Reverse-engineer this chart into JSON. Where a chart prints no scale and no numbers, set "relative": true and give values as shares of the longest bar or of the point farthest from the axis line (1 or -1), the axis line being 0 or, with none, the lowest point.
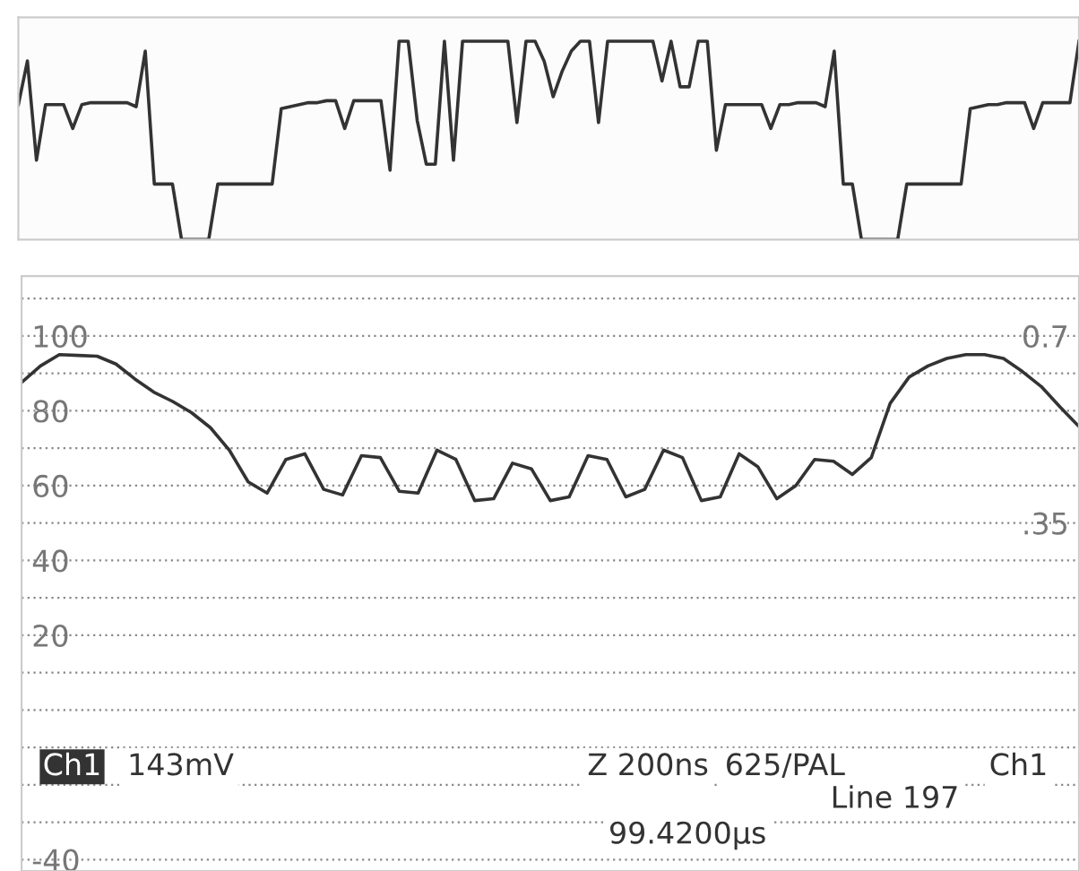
{
  "chart_data": [
    {
      "type": "line",
      "relative": true,
      "tick_labels": false,
      "color": "#333333",
      "categories": [
        null,
        null,
        null,
        null,
        null,
        null,
        null,
        null,
        null,
        null,
        null,
        null,
        null,
        null,
        null,
        null,
        null,
        null,
        null,
        null,
        null,
        null,
        null,
        null,
        null,
        null,
        null,
        null,
        null,
        null,
        null,
        null,
        null,
        null,
        null,
        null,
        null,
        null,
        null,
        null,
        null,
        null,
        null,
        null,
        null,
        null,
        null,
        null,
        null,
        null,
        null,
        null,
        null,
        null,
        null,
        null,
        null,
        null,
        null,
        null,
        null,
        null,
        null,
        null,
        null,
        null,
        null,
        null,
        null,
        null,
        null,
        null,
        null,
        null,
        null,
        null,
        null,
        null,
        null,
        null,
        null,
        null,
        null,
        null,
        null,
        null,
        null,
        null,
        null,
        null,
        null,
        null,
        null,
        null,
        null,
        null,
        null,
        null,
        null,
        null,
        null,
        null,
        null,
        null,
        null,
        null,
        null,
        null,
        null,
        null,
        null,
        null,
        null,
        null,
        null,
        null,
        null,
        null
      ],
      "values": [
        0.68,
        0.9,
        0.4,
        0.68,
        0.68,
        0.68,
        0.56,
        0.68,
        0.69,
        0.69,
        0.69,
        0.69,
        0.69,
        0.67,
        0.95,
        0.28,
        0.28,
        0.28,
        0,
        0,
        0,
        0,
        0.28,
        0.28,
        0.28,
        0.28,
        0.28,
        0.28,
        0.28,
        0.66,
        0.67,
        0.68,
        0.69,
        0.69,
        0.7,
        0.7,
        0.56,
        0.7,
        0.7,
        0.7,
        0.7,
        0.35,
        1,
        1,
        0.6,
        0.38,
        0.38,
        1,
        0.4,
        1,
        1,
        1,
        1,
        1,
        1,
        0.59,
        1,
        1,
        0.9,
        0.72,
        0.85,
        0.95,
        1,
        1,
        0.59,
        1,
        1,
        1,
        1,
        1,
        1,
        0.8,
        1,
        0.77,
        0.77,
        1,
        1,
        0.45,
        0.68,
        0.68,
        0.68,
        0.68,
        0.68,
        0.56,
        0.68,
        0.68,
        0.69,
        0.69,
        0.69,
        0.67,
        0.95,
        0.28,
        0.28,
        0,
        0,
        0,
        0,
        0,
        0.28,
        0.28,
        0.28,
        0.28,
        0.28,
        0.28,
        0.28,
        0.66,
        0.67,
        0.68,
        0.68,
        0.69,
        0.69,
        0.69,
        0.56,
        0.69,
        0.69,
        0.69,
        0.69,
        1
      ]
    },
    {
      "type": "line",
      "tick_labels": "y",
      "color": "#333333",
      "grid": "y",
      "categories": [
        null,
        null,
        null,
        null,
        null,
        null,
        null,
        null,
        null,
        null,
        null,
        null,
        null,
        null,
        null,
        null,
        null,
        null,
        null,
        null,
        null,
        null,
        null,
        null,
        null,
        null,
        null,
        null,
        null,
        null,
        null,
        null,
        null,
        null,
        null,
        null,
        null,
        null,
        null,
        null,
        null,
        null,
        null,
        null,
        null,
        null,
        null,
        null,
        null,
        null,
        null,
        null,
        null,
        null,
        null,
        null,
        null
      ],
      "values": [
        87.6,
        92,
        95,
        94.8,
        94.6,
        92.5,
        88.5,
        85,
        82.5,
        79.5,
        75.5,
        69.5,
        61,
        58,
        67,
        68.5,
        59,
        57.5,
        68,
        67.5,
        58.5,
        58,
        69.5,
        67,
        56,
        56.5,
        66,
        64.5,
        56,
        57,
        68,
        67,
        57,
        59,
        69.5,
        67.5,
        56,
        57,
        68.5,
        65,
        56.5,
        60,
        67,
        66.5,
        63,
        67.5,
        82,
        89,
        92,
        94,
        95,
        95,
        94,
        90.5,
        86.5,
        81,
        75.8
      ],
      "ylim": [
        -43,
        116
      ],
      "yticks": [
        {
          "value": 110,
          "label": null
        },
        100,
        {
          "value": 90,
          "label": null
        },
        80,
        {
          "value": 70,
          "label": null
        },
        60,
        {
          "value": 50,
          "label": null
        },
        40,
        {
          "value": 30,
          "label": null
        },
        20,
        {
          "value": 10,
          "label": null
        },
        {
          "value": 0,
          "label": null
        },
        {
          "value": -10,
          "label": null
        },
        {
          "value": -20,
          "label": null
        },
        {
          "value": -30,
          "label": null
        },
        -40
      ],
      "y2lim": [
        -0.301,
        0.812
      ],
      "y2ticks": [
        {
          "value": 0.7,
          "label": "0.7"
        },
        {
          "value": 0.35,
          "label": ".35"
        }
      ],
      "annotations": [
        "Ch1",
        "143mV",
        "Z 200ns",
        "625/PAL",
        "Ch1",
        "Line 197",
        "99.4200µs"
      ]
    }
  ]
}
